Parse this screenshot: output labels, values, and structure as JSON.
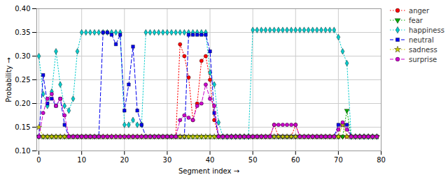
{
  "chart_data": {
    "type": "line",
    "title": "",
    "x_label": "Segment index",
    "y_label": "Probability",
    "xlim": [
      -0.5,
      80
    ],
    "ylim": [
      0.1,
      0.4
    ],
    "xticks": [
      0,
      10,
      20,
      30,
      40,
      50,
      60,
      70,
      80
    ],
    "yticks": [
      {
        "value": 0.1,
        "label": "0.10"
      },
      0.15,
      {
        "value": 0.2,
        "label": "0.20"
      },
      0.25,
      {
        "value": 0.3,
        "label": "0.30"
      },
      0.35,
      {
        "value": 0.4,
        "label": "0.40"
      }
    ],
    "grid": true,
    "legend": "upper right",
    "x": [
      0,
      1,
      2,
      3,
      4,
      5,
      6,
      7,
      8,
      9,
      10,
      11,
      12,
      13,
      14,
      15,
      16,
      17,
      18,
      19,
      20,
      21,
      22,
      23,
      24,
      25,
      26,
      27,
      28,
      29,
      30,
      31,
      32,
      33,
      34,
      35,
      36,
      37,
      38,
      39,
      40,
      41,
      42,
      43,
      44,
      45,
      46,
      47,
      48,
      49,
      50,
      51,
      52,
      53,
      54,
      55,
      56,
      57,
      58,
      59,
      60,
      61,
      62,
      63,
      64,
      65,
      66,
      67,
      68,
      69,
      70,
      71,
      72,
      73,
      74,
      75,
      76,
      77,
      78,
      79
    ],
    "series": [
      {
        "name": "anger",
        "color": "#ff0000",
        "line_style": "dotted",
        "marker": "circle",
        "values": [
          0.13,
          0.13,
          0.13,
          0.13,
          0.13,
          0.13,
          0.13,
          0.13,
          0.13,
          0.13,
          0.13,
          0.13,
          0.13,
          0.13,
          0.13,
          0.13,
          0.13,
          0.13,
          0.13,
          0.13,
          0.13,
          0.13,
          0.13,
          0.13,
          0.13,
          0.13,
          0.13,
          0.13,
          0.13,
          0.13,
          0.13,
          0.13,
          0.13,
          0.325,
          0.3,
          0.255,
          0.165,
          0.2,
          0.29,
          0.3,
          0.25,
          0.165,
          0.13,
          0.13,
          0.13,
          0.13,
          0.13,
          0.13,
          0.13,
          0.13,
          0.13,
          0.13,
          0.13,
          0.13,
          0.13,
          0.155,
          0.13,
          0.13,
          0.13,
          0.13,
          0.155,
          0.13,
          0.13,
          0.13,
          0.13,
          0.13,
          0.13,
          0.13,
          0.13,
          0.13,
          0.13,
          0.13,
          0.13,
          0.13,
          0.13,
          0.13,
          0.13,
          0.13,
          0.13,
          0.13
        ]
      },
      {
        "name": "fear",
        "color": "#00aa00",
        "line_style": "dotted",
        "marker": "triangle_down",
        "values": [
          0.13,
          0.13,
          0.13,
          0.13,
          0.13,
          0.13,
          0.13,
          0.13,
          0.13,
          0.13,
          0.13,
          0.13,
          0.13,
          0.13,
          0.13,
          0.13,
          0.13,
          0.13,
          0.13,
          0.13,
          0.13,
          0.13,
          0.13,
          0.13,
          0.13,
          0.13,
          0.13,
          0.13,
          0.13,
          0.13,
          0.13,
          0.13,
          0.13,
          0.13,
          0.13,
          0.13,
          0.13,
          0.13,
          0.13,
          0.13,
          0.13,
          0.13,
          0.13,
          0.13,
          0.13,
          0.13,
          0.13,
          0.13,
          0.13,
          0.13,
          0.13,
          0.13,
          0.13,
          0.13,
          0.13,
          0.13,
          0.13,
          0.13,
          0.13,
          0.13,
          0.13,
          0.13,
          0.13,
          0.13,
          0.13,
          0.13,
          0.13,
          0.13,
          0.13,
          0.13,
          0.13,
          0.13,
          0.185,
          0.13,
          0.13,
          0.13,
          0.13,
          0.13,
          0.13,
          0.13
        ]
      },
      {
        "name": "happiness",
        "color": "#00cccc",
        "line_style": "dotted",
        "marker": "diamond",
        "values": [
          0.3,
          0.22,
          0.195,
          0.225,
          0.31,
          0.24,
          0.195,
          0.185,
          0.21,
          0.31,
          0.35,
          0.35,
          0.35,
          0.35,
          0.35,
          0.35,
          0.35,
          0.35,
          0.35,
          0.35,
          0.155,
          0.155,
          0.165,
          0.155,
          0.155,
          0.35,
          0.35,
          0.35,
          0.35,
          0.35,
          0.35,
          0.35,
          0.35,
          0.35,
          0.35,
          0.35,
          0.35,
          0.35,
          0.35,
          0.35,
          0.265,
          0.24,
          0.16,
          0.13,
          0.13,
          0.13,
          0.13,
          0.13,
          0.13,
          0.13,
          0.355,
          0.355,
          0.355,
          0.355,
          0.355,
          0.355,
          0.355,
          0.355,
          0.355,
          0.355,
          0.355,
          0.355,
          0.355,
          0.355,
          0.355,
          0.355,
          0.355,
          0.355,
          0.355,
          0.355,
          0.34,
          0.31,
          0.285,
          0.13,
          0.13,
          0.13,
          0.13,
          0.13,
          0.13,
          0.13
        ]
      },
      {
        "name": "neutral",
        "color": "#0000ee",
        "line_style": "dashed",
        "marker": "square",
        "values": [
          0.13,
          0.26,
          0.2,
          0.21,
          0.195,
          0.21,
          0.155,
          0.13,
          0.13,
          0.13,
          0.13,
          0.13,
          0.13,
          0.13,
          0.13,
          0.35,
          0.35,
          0.345,
          0.325,
          0.345,
          0.185,
          0.24,
          0.32,
          0.185,
          0.155,
          0.13,
          0.13,
          0.13,
          0.13,
          0.13,
          0.13,
          0.13,
          0.13,
          0.13,
          0.13,
          0.345,
          0.345,
          0.345,
          0.345,
          0.345,
          0.31,
          0.18,
          0.13,
          0.13,
          0.13,
          0.13,
          0.13,
          0.13,
          0.13,
          0.13,
          0.13,
          0.13,
          0.13,
          0.13,
          0.13,
          0.13,
          0.13,
          0.13,
          0.13,
          0.13,
          0.13,
          0.13,
          0.13,
          0.13,
          0.13,
          0.13,
          0.13,
          0.13,
          0.13,
          0.13,
          0.155,
          0.155,
          0.155,
          0.13,
          0.13,
          0.13,
          0.13,
          0.13,
          0.13,
          0.13
        ]
      },
      {
        "name": "sadness",
        "color": "#cccc00",
        "line_style": "dotted",
        "marker": "star",
        "values": [
          0.15,
          0.13,
          0.13,
          0.13,
          0.13,
          0.13,
          0.13,
          0.13,
          0.13,
          0.13,
          0.13,
          0.13,
          0.13,
          0.13,
          0.13,
          0.13,
          0.13,
          0.13,
          0.13,
          0.13,
          0.13,
          0.13,
          0.13,
          0.13,
          0.13,
          0.13,
          0.13,
          0.13,
          0.13,
          0.13,
          0.13,
          0.13,
          0.13,
          0.13,
          0.13,
          0.13,
          0.13,
          0.13,
          0.13,
          0.13,
          0.13,
          0.13,
          0.13,
          0.13,
          0.13,
          0.13,
          0.13,
          0.13,
          0.13,
          0.13,
          0.13,
          0.13,
          0.13,
          0.13,
          0.13,
          0.13,
          0.13,
          0.13,
          0.13,
          0.13,
          0.13,
          0.13,
          0.13,
          0.13,
          0.13,
          0.13,
          0.13,
          0.13,
          0.13,
          0.13,
          0.13,
          0.155,
          0.13,
          0.13,
          0.13,
          0.13,
          0.13,
          0.13,
          0.13,
          0.13
        ]
      },
      {
        "name": "surprise",
        "color": "#cc00cc",
        "line_style": "dashed",
        "marker": "circle",
        "values": [
          0.13,
          0.18,
          0.21,
          0.22,
          0.195,
          0.21,
          0.175,
          0.13,
          0.13,
          0.13,
          0.13,
          0.13,
          0.13,
          0.13,
          0.13,
          0.13,
          0.13,
          0.13,
          0.13,
          0.13,
          0.13,
          0.13,
          0.13,
          0.13,
          0.13,
          0.13,
          0.13,
          0.13,
          0.13,
          0.13,
          0.13,
          0.13,
          0.13,
          0.165,
          0.175,
          0.17,
          0.165,
          0.195,
          0.2,
          0.24,
          0.21,
          0.195,
          0.13,
          0.13,
          0.13,
          0.13,
          0.13,
          0.13,
          0.13,
          0.13,
          0.13,
          0.13,
          0.13,
          0.13,
          0.13,
          0.155,
          0.155,
          0.155,
          0.155,
          0.155,
          0.155,
          0.13,
          0.13,
          0.13,
          0.13,
          0.13,
          0.13,
          0.13,
          0.13,
          0.13,
          0.145,
          0.16,
          0.145,
          0.13,
          0.13,
          0.13,
          0.13,
          0.13,
          0.13,
          0.13
        ]
      }
    ]
  }
}
